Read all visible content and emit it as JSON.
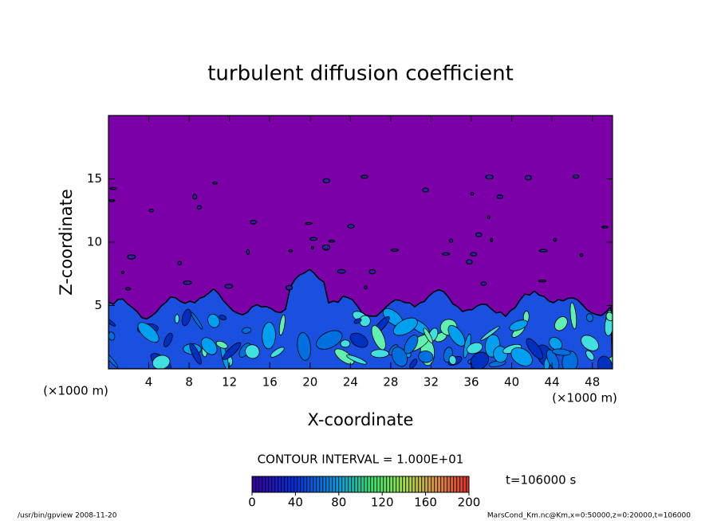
{
  "chart_data": {
    "type": "contour",
    "title": "turbulent diffusion coefficient",
    "xlabel": "X-coordinate",
    "ylabel": "Z-coordinate",
    "x_unit": "(×1000 m)",
    "y_unit": "(×1000 m)",
    "xlim": [
      0,
      50
    ],
    "ylim": [
      0,
      20
    ],
    "xticks": [
      4,
      8,
      12,
      16,
      20,
      24,
      28,
      32,
      36,
      40,
      44,
      48
    ],
    "yticks": [
      5,
      10,
      15
    ],
    "background_color": "#7b00a8",
    "colorbar": {
      "lim": [
        0,
        200
      ],
      "ticks": [
        0,
        40,
        80,
        120,
        160,
        200
      ]
    },
    "contour_interval": "CONTOUR INTERVAL = 1.000E+01",
    "time_label": "t=106000 s",
    "footer_left": "/usr/bin/gpview   2008-11-20",
    "footer_right": "MarsCond_Km.nc@Km,x=0:50000,z=0:20000,t=106000"
  }
}
